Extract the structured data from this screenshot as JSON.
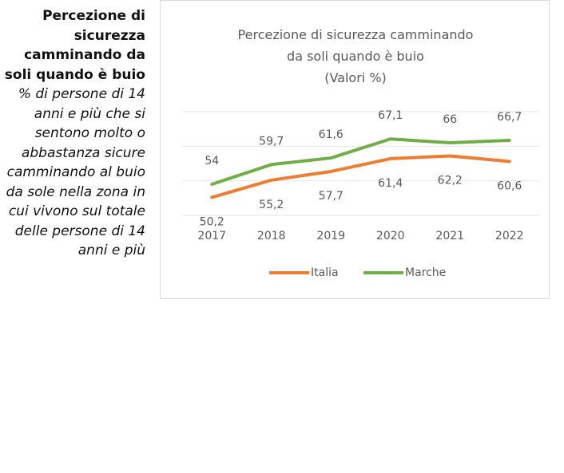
{
  "sidebar": {
    "heading": "Percezione di sicurezza camminando da soli quando è buio",
    "description": "% di persone di 14 anni e più che si sentono molto o abbastanza sicure camminando al buio da sole nella zona in cui vivono sul totale delle persone di 14 anni e più"
  },
  "chart_data": {
    "type": "line",
    "title": "Percezione di sicurezza camminando da soli quando è buio",
    "subtitle": "(Valori %)",
    "categories": [
      "2017",
      "2018",
      "2019",
      "2020",
      "2021",
      "2022"
    ],
    "series": [
      {
        "name": "Italia",
        "color": "#ed7d31",
        "values": [
          50.2,
          55.2,
          57.7,
          61.4,
          62.2,
          60.6
        ],
        "value_labels": [
          "50,2",
          "55,2",
          "57,7",
          "61,4",
          "62,2",
          "60,6"
        ]
      },
      {
        "name": "Marche",
        "color": "#70ad47",
        "values": [
          54,
          59.7,
          61.6,
          67.1,
          66,
          66.7
        ],
        "value_labels": [
          "54",
          "59,7",
          "61,6",
          "67,1",
          "66",
          "66,7"
        ]
      }
    ],
    "ylim": [
      45,
      75
    ],
    "yticks": [
      45,
      55,
      65,
      75
    ],
    "grid": true,
    "legend": "bottom"
  }
}
